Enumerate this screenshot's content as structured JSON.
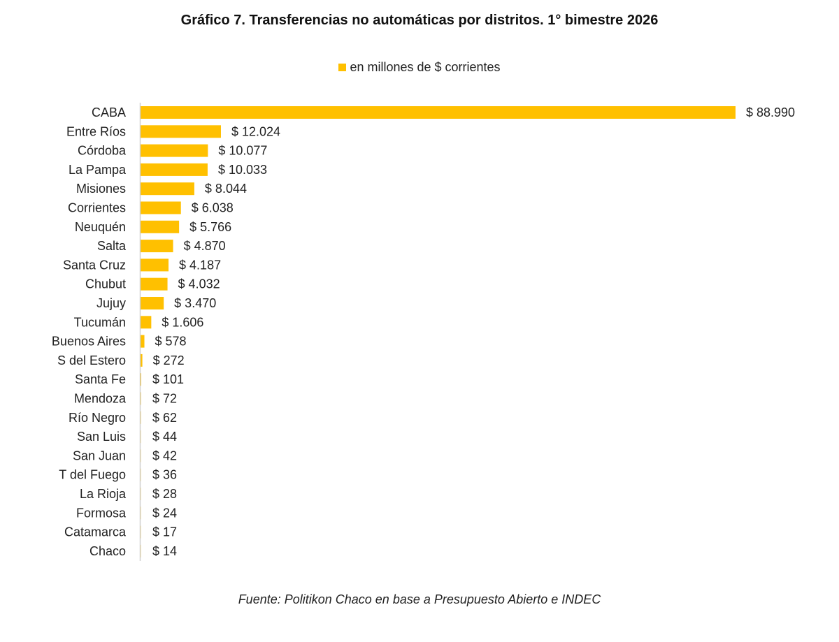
{
  "chart_data": {
    "type": "bar",
    "orientation": "horizontal",
    "title": "Gráfico 7. Transferencias no automáticas por distritos. 1° bimestre 2026",
    "legend": {
      "label": "en millones de $ corrientes",
      "placement": "top"
    },
    "series": [
      {
        "name": "en millones de $ corrientes",
        "color": "#FFC000"
      }
    ],
    "categories": [
      "CABA",
      "Entre Ríos",
      "Córdoba",
      "La Pampa",
      "Misiones",
      "Corrientes",
      "Neuquén",
      "Salta",
      "Santa Cruz",
      "Chubut",
      "Jujuy",
      "Tucumán",
      "Buenos Aires",
      "S del Estero",
      "Santa Fe",
      "Mendoza",
      "Río Negro",
      "San Luis",
      "San Juan",
      "T del Fuego",
      "La Rioja",
      "Formosa",
      "Catamarca",
      "Chaco"
    ],
    "values": [
      88990,
      12024,
      10077,
      10033,
      8044,
      6038,
      5766,
      4870,
      4187,
      4032,
      3470,
      1606,
      578,
      272,
      101,
      72,
      62,
      44,
      42,
      36,
      28,
      24,
      17,
      14
    ],
    "data_labels": [
      "$ 88.990",
      "$ 12.024",
      "$ 10.077",
      "$ 10.033",
      "$ 8.044",
      "$ 6.038",
      "$ 5.766",
      "$ 4.870",
      "$ 4.187",
      "$ 4.032",
      "$ 3.470",
      "$ 1.606",
      "$ 578",
      "$ 272",
      "$ 101",
      "$ 72",
      "$ 62",
      "$ 44",
      "$ 42",
      "$ 36",
      "$ 28",
      "$ 24",
      "$ 17",
      "$ 14"
    ],
    "xlim": [
      0,
      88990
    ],
    "grid": false,
    "source": "Fuente: Politikon Chaco en base a Presupuesto Abierto e INDEC"
  }
}
